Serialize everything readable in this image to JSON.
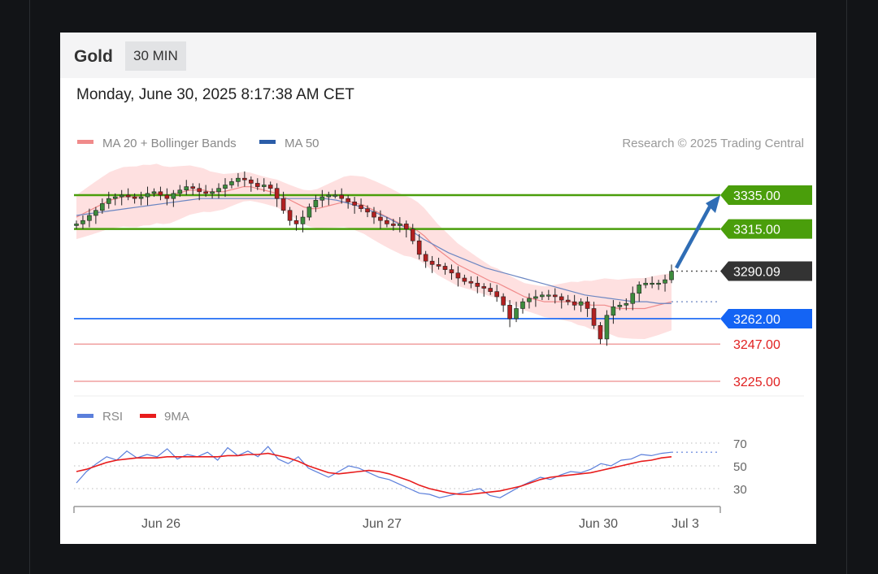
{
  "header": {
    "instrument": "Gold",
    "timeframe": "30 MIN",
    "datetime": "Monday, June 30, 2025 8:17:38 AM CET"
  },
  "legend": {
    "ma20_label": "MA 20 + Bollinger Bands",
    "ma50_label": "MA 50",
    "rsi_label": "RSI",
    "rsi_ma_label": "9MA",
    "credit": "Research © 2025 Trading Central"
  },
  "colors": {
    "resistance": "#4a9e0b",
    "support": "#1464f4",
    "price_tag": "#333333",
    "target_red": "#e02020",
    "ma20": "#f08a8a",
    "band": "#fdd5d5",
    "ma50": "#6b86c2",
    "rsi": "#5b7fdb",
    "rsi_ma": "#e81c1c",
    "arrow": "#2f6db5",
    "candle_up": "#3d8b3d",
    "candle_down": "#b22020"
  },
  "chart_data": [
    {
      "type": "candlestick",
      "title": "",
      "ylim": [
        3220,
        3355
      ],
      "x_ticks": [
        "Jun 26",
        "Jun 27",
        "Jun 30",
        "Jul 3"
      ],
      "levels": [
        {
          "value": 3335.0,
          "label": "3335.00",
          "kind": "resistance"
        },
        {
          "value": 3315.0,
          "label": "3315.00",
          "kind": "resistance"
        },
        {
          "value": 3290.09,
          "label": "3290.09",
          "kind": "last-price"
        },
        {
          "value": 3262.0,
          "label": "3262.00",
          "kind": "support"
        },
        {
          "value": 3247.0,
          "label": "3247.00",
          "kind": "target"
        },
        {
          "value": 3225.0,
          "label": "3225.00",
          "kind": "target"
        }
      ],
      "price_path": [
        3318,
        3320,
        3323,
        3326,
        3330,
        3333,
        3334,
        3335,
        3334,
        3333,
        3334,
        3336,
        3337,
        3335,
        3333,
        3336,
        3338,
        3340,
        3339,
        3337,
        3336,
        3337,
        3339,
        3341,
        3343,
        3345,
        3344,
        3342,
        3340,
        3341,
        3339,
        3333,
        3326,
        3320,
        3318,
        3322,
        3328,
        3332,
        3334,
        3335,
        3335,
        3333,
        3331,
        3329,
        3327,
        3325,
        3322,
        3320,
        3318,
        3317,
        3318,
        3315,
        3308,
        3300,
        3296,
        3294,
        3293,
        3291,
        3289,
        3286,
        3284,
        3283,
        3281,
        3280,
        3278,
        3275,
        3270,
        3262,
        3268,
        3272,
        3274,
        3275,
        3276,
        3276,
        3275,
        3273,
        3272,
        3270,
        3272,
        3268,
        3258,
        3250,
        3264,
        3269,
        3270,
        3271,
        3277,
        3282,
        3283,
        3283,
        3283,
        3285,
        3290
      ],
      "ma20": [
        3322,
        3324,
        3326,
        3328,
        3330,
        3332,
        3333,
        3334,
        3334,
        3334,
        3335,
        3335,
        3336,
        3335,
        3335,
        3336,
        3337,
        3338,
        3338,
        3338,
        3337,
        3337,
        3337,
        3338,
        3339,
        3340,
        3340,
        3339,
        3338,
        3337,
        3336,
        3334,
        3332,
        3330,
        3328,
        3327,
        3327,
        3328,
        3329,
        3330,
        3331,
        3331,
        3330,
        3329,
        3327,
        3325,
        3323,
        3321,
        3319,
        3317,
        3316,
        3314,
        3311,
        3307,
        3303,
        3300,
        3297,
        3294,
        3292,
        3290,
        3288,
        3286,
        3284,
        3283,
        3281,
        3279,
        3277,
        3275,
        3274,
        3273,
        3272,
        3272,
        3272,
        3272,
        3272,
        3271,
        3271,
        3270,
        3270,
        3270,
        3269,
        3268,
        3268,
        3268,
        3268,
        3268,
        3269,
        3270,
        3271,
        3272
      ],
      "ma50": [
        3323,
        3324,
        3325,
        3326,
        3327,
        3328,
        3329,
        3330,
        3331,
        3332,
        3333,
        3333,
        3333,
        3333,
        3333,
        3333,
        3333,
        3333,
        3333,
        3333,
        3333,
        3332,
        3330,
        3328,
        3325,
        3322,
        3318,
        3314,
        3309,
        3305,
        3301,
        3298,
        3295,
        3292,
        3290,
        3288,
        3286,
        3284,
        3282,
        3280,
        3278,
        3276,
        3275,
        3274,
        3273,
        3272,
        3272,
        3271,
        3271
      ]
    },
    {
      "type": "line",
      "title": "RSI",
      "ylim": [
        20,
        80
      ],
      "y_ticks": [
        "70",
        "50",
        "30"
      ],
      "series": [
        {
          "name": "RSI",
          "values": [
            35,
            45,
            52,
            58,
            55,
            63,
            57,
            60,
            58,
            65,
            56,
            60,
            58,
            62,
            55,
            66,
            59,
            63,
            58,
            67,
            56,
            52,
            58,
            48,
            44,
            40,
            45,
            50,
            48,
            44,
            40,
            38,
            34,
            30,
            26,
            25,
            22,
            24,
            26,
            28,
            30,
            24,
            22,
            27,
            32,
            36,
            40,
            38,
            42,
            45,
            44,
            47,
            52,
            50,
            55,
            56,
            60,
            59,
            61,
            62
          ]
        },
        {
          "name": "9MA",
          "values": [
            45,
            47,
            50,
            53,
            55,
            56,
            57,
            57,
            57,
            58,
            58,
            58,
            58,
            58,
            58,
            59,
            59,
            60,
            60,
            61,
            59,
            57,
            54,
            50,
            47,
            44,
            43,
            44,
            45,
            46,
            45,
            43,
            40,
            37,
            33,
            30,
            28,
            26,
            25,
            25,
            26,
            27,
            28,
            30,
            32,
            35,
            38,
            40,
            41,
            42,
            43,
            44,
            46,
            48,
            50,
            52,
            54,
            55,
            57,
            58
          ]
        }
      ]
    }
  ]
}
